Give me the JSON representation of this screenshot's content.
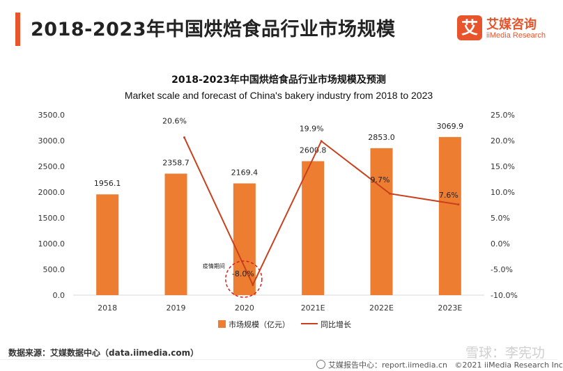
{
  "header": {
    "title": "2018-2023年中国烘焙食品行业市场规模",
    "logo_mark": "艾",
    "logo_cn": "艾媒咨询",
    "logo_en": "iiMedia Research"
  },
  "chart_data": {
    "type": "bar",
    "title": "2018-2023年中国烘焙食品行业市场规模及预测",
    "subtitle": "Market scale and forecast of China's bakery industry from 2018 to 2023",
    "categories": [
      "2018",
      "2019",
      "2020",
      "2021E",
      "2022E",
      "2023E"
    ],
    "series": [
      {
        "name": "市场规模（亿元）",
        "type": "bar",
        "axis": "left",
        "color": "#ed7d31",
        "values": [
          1956.1,
          2358.7,
          2169.4,
          2600.8,
          2853.0,
          3069.9
        ],
        "labels": [
          "1956.1",
          "2358.7",
          "2169.4",
          "2600.8",
          "2853.0",
          "3069.9"
        ]
      },
      {
        "name": "同比增长",
        "type": "line",
        "axis": "right",
        "color": "#c9401c",
        "values": [
          null,
          20.6,
          -8.0,
          19.9,
          9.7,
          7.6
        ],
        "labels": [
          "",
          "20.6%",
          "-8.0%",
          "19.9%",
          "9.7%",
          "7.6%"
        ]
      }
    ],
    "y_left": {
      "min": 0,
      "max": 3500,
      "ticks": [
        "0.0",
        "500.0",
        "1000.0",
        "1500.0",
        "2000.0",
        "2500.0",
        "3000.0",
        "3500.0"
      ]
    },
    "y_right": {
      "min": -10,
      "max": 25,
      "ticks": [
        "-10.0%",
        "-5.0%",
        "0.0%",
        "5.0%",
        "10.0%",
        "15.0%",
        "20.0%",
        "25.0%"
      ]
    },
    "annotation": {
      "text": "疫情期间",
      "category": "2020"
    },
    "legend_position": "bottom",
    "grid": false
  },
  "footer": {
    "source": "数据来源：艾媒数据中心（data.iimedia.com）",
    "watermark": "雪球：李宪功",
    "report_site": "艾媒报告中心：report.iimedia.cn",
    "copyright": "©2021  iiMedia Research  Inc"
  }
}
